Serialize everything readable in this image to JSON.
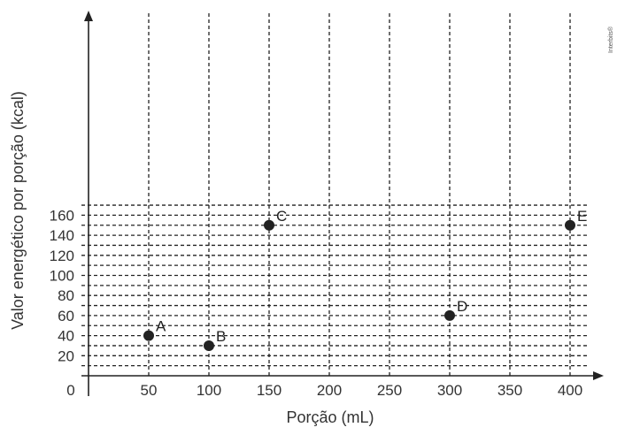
{
  "chart_data": {
    "type": "scatter",
    "xlabel": "Porção (mL)",
    "ylabel": "Valor energético por porção (kcal)",
    "origin_label": "0",
    "x_ticks": [
      50,
      100,
      150,
      200,
      250,
      300,
      350,
      400
    ],
    "y_ticks": [
      20,
      40,
      60,
      80,
      100,
      120,
      140,
      160
    ],
    "xlim": [
      0,
      430
    ],
    "ylim": [
      0,
      170
    ],
    "grid": true,
    "points": [
      {
        "label": "A",
        "x": 50,
        "y": 40
      },
      {
        "label": "B",
        "x": 100,
        "y": 30
      },
      {
        "label": "C",
        "x": 150,
        "y": 150
      },
      {
        "label": "D",
        "x": 300,
        "y": 60
      },
      {
        "label": "E",
        "x": 400,
        "y": 150
      }
    ]
  },
  "watermark": "Interbits®"
}
